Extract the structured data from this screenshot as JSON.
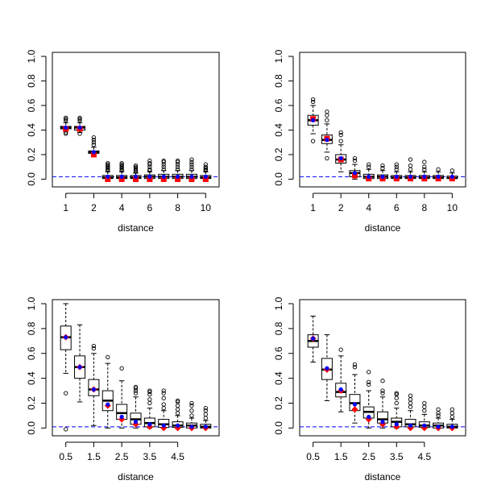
{
  "colors": {
    "median": "#000000",
    "box": "#000000",
    "whisker": "#000000",
    "outlier": "#000000",
    "red_marker": "#ff0000",
    "blue_marker": "#0000ff",
    "reference_line": "#0000ff",
    "background": "#ffffff"
  },
  "chart_data": [
    {
      "panel": "top-left",
      "type": "boxplot",
      "xlabel": "distance",
      "ylabel": "",
      "ylim": [
        -0.03,
        1.0
      ],
      "yticks": [
        "0.0",
        "0.2",
        "0.4",
        "0.6",
        "0.8",
        "1.0"
      ],
      "ytick_values": [
        0,
        0.2,
        0.4,
        0.6,
        0.8,
        1.0
      ],
      "xtick_labels": [
        "1",
        "2",
        "4",
        "6",
        "8",
        "10"
      ],
      "xtick_positions": [
        1,
        3,
        5,
        7,
        9,
        11
      ],
      "reference_line": 0.02,
      "boxes": [
        {
          "q1": 0.41,
          "median": 0.42,
          "q3": 0.43,
          "lo": 0.39,
          "hi": 0.46,
          "outliers": [
            0.48,
            0.49,
            0.5,
            0.37,
            0.38
          ]
        },
        {
          "q1": 0.4,
          "median": 0.42,
          "q3": 0.43,
          "lo": 0.38,
          "hi": 0.46,
          "outliers": [
            0.48,
            0.49,
            0.5,
            0.37
          ]
        },
        {
          "q1": 0.21,
          "median": 0.22,
          "q3": 0.23,
          "lo": 0.19,
          "hi": 0.26,
          "outliers": [
            0.28,
            0.3,
            0.32,
            0.34
          ]
        },
        {
          "q1": 0.005,
          "median": 0.015,
          "q3": 0.03,
          "lo": 0.0,
          "hi": 0.06,
          "outliers": [
            0.07,
            0.08,
            0.09,
            0.1,
            0.11,
            0.12,
            0.13
          ]
        },
        {
          "q1": 0.005,
          "median": 0.015,
          "q3": 0.03,
          "lo": 0.0,
          "hi": 0.06,
          "outliers": [
            0.07,
            0.08,
            0.09,
            0.1,
            0.11,
            0.12,
            0.13
          ]
        },
        {
          "q1": 0.005,
          "median": 0.015,
          "q3": 0.03,
          "lo": 0.0,
          "hi": 0.05,
          "outliers": [
            0.06,
            0.07,
            0.08,
            0.09,
            0.1,
            0.11
          ]
        },
        {
          "q1": 0.005,
          "median": 0.02,
          "q3": 0.035,
          "lo": 0.0,
          "hi": 0.06,
          "outliers": [
            0.07,
            0.08,
            0.1,
            0.12,
            0.13,
            0.15
          ]
        },
        {
          "q1": 0.005,
          "median": 0.02,
          "q3": 0.04,
          "lo": 0.0,
          "hi": 0.07,
          "outliers": [
            0.08,
            0.1,
            0.12,
            0.14,
            0.15
          ]
        },
        {
          "q1": 0.005,
          "median": 0.02,
          "q3": 0.04,
          "lo": 0.0,
          "hi": 0.07,
          "outliers": [
            0.08,
            0.1,
            0.12,
            0.14,
            0.15
          ]
        },
        {
          "q1": 0.005,
          "median": 0.02,
          "q3": 0.04,
          "lo": 0.0,
          "hi": 0.07,
          "outliers": [
            0.08,
            0.1,
            0.12,
            0.14,
            0.16
          ]
        },
        {
          "q1": 0.005,
          "median": 0.015,
          "q3": 0.03,
          "lo": 0.0,
          "hi": 0.06,
          "outliers": [
            0.07,
            0.08,
            0.09,
            0.1,
            0.12
          ]
        }
      ],
      "red_points": [
        0.41,
        0.41,
        0.2,
        0.0,
        0.0,
        0.0,
        0.0,
        0.0,
        0.0,
        0.0,
        0.0
      ],
      "blue_points": [
        0.42,
        0.42,
        0.22,
        0.02,
        0.02,
        0.02,
        0.02,
        0.02,
        0.02,
        0.02,
        0.02
      ],
      "red_shape": "square",
      "blue_shape": "dot"
    },
    {
      "panel": "top-right",
      "type": "boxplot",
      "xlabel": "distance",
      "ylabel": "",
      "ylim": [
        -0.03,
        1.0
      ],
      "yticks": [
        "0.0",
        "0.2",
        "0.4",
        "0.6",
        "0.8",
        "1.0"
      ],
      "ytick_values": [
        0,
        0.2,
        0.4,
        0.6,
        0.8,
        1.0
      ],
      "xtick_labels": [
        "1",
        "2",
        "4",
        "6",
        "8",
        "10"
      ],
      "xtick_positions": [
        1,
        3,
        5,
        7,
        9,
        11
      ],
      "reference_line": 0.02,
      "boxes": [
        {
          "q1": 0.44,
          "median": 0.48,
          "q3": 0.52,
          "lo": 0.37,
          "hi": 0.6,
          "outliers": [
            0.63,
            0.65,
            0.31
          ]
        },
        {
          "q1": 0.29,
          "median": 0.32,
          "q3": 0.36,
          "lo": 0.22,
          "hi": 0.45,
          "outliers": [
            0.48,
            0.52,
            0.55,
            0.17
          ]
        },
        {
          "q1": 0.13,
          "median": 0.16,
          "q3": 0.2,
          "lo": 0.06,
          "hi": 0.28,
          "outliers": [
            0.31,
            0.36,
            0.38
          ]
        },
        {
          "q1": 0.02,
          "median": 0.05,
          "q3": 0.07,
          "lo": 0.0,
          "hi": 0.12,
          "outliers": [
            0.15,
            0.17
          ]
        },
        {
          "q1": 0.005,
          "median": 0.02,
          "q3": 0.04,
          "lo": 0.0,
          "hi": 0.08,
          "outliers": [
            0.1,
            0.12
          ]
        },
        {
          "q1": 0.005,
          "median": 0.02,
          "q3": 0.035,
          "lo": 0.0,
          "hi": 0.07,
          "outliers": [
            0.09,
            0.11
          ]
        },
        {
          "q1": 0.005,
          "median": 0.015,
          "q3": 0.03,
          "lo": 0.0,
          "hi": 0.06,
          "outliers": [
            0.08,
            0.1,
            0.12
          ]
        },
        {
          "q1": 0.005,
          "median": 0.015,
          "q3": 0.03,
          "lo": 0.0,
          "hi": 0.06,
          "outliers": [
            0.08,
            0.11,
            0.16
          ]
        },
        {
          "q1": 0.005,
          "median": 0.015,
          "q3": 0.03,
          "lo": 0.0,
          "hi": 0.06,
          "outliers": [
            0.08,
            0.1,
            0.14
          ]
        },
        {
          "q1": 0.005,
          "median": 0.015,
          "q3": 0.03,
          "lo": 0.0,
          "hi": 0.06,
          "outliers": [
            0.08
          ]
        },
        {
          "q1": 0.005,
          "median": 0.01,
          "q3": 0.025,
          "lo": 0.0,
          "hi": 0.05,
          "outliers": [
            0.07
          ]
        }
      ],
      "red_points": [
        0.49,
        0.33,
        0.16,
        0.03,
        0.005,
        0.005,
        0.005,
        0.005,
        0.005,
        0.005,
        0.005
      ],
      "blue_points": [
        0.48,
        0.32,
        0.17,
        0.05,
        0.02,
        0.02,
        0.02,
        0.02,
        0.02,
        0.02,
        0.02
      ],
      "red_shape": "square",
      "blue_shape": "dot"
    },
    {
      "panel": "bottom-left",
      "type": "boxplot",
      "xlabel": "distance",
      "ylabel": "",
      "ylim": [
        -0.03,
        1.0
      ],
      "yticks": [
        "0.0",
        "0.2",
        "0.4",
        "0.6",
        "0.8",
        "1.0"
      ],
      "ytick_values": [
        0,
        0.2,
        0.4,
        0.6,
        0.8,
        1.0
      ],
      "xtick_labels": [
        "0.5",
        "1.5",
        "2.5",
        "3.5",
        "4.5"
      ],
      "xtick_positions": [
        1,
        3,
        5,
        7,
        9
      ],
      "reference_line": 0.01,
      "boxes": [
        {
          "q1": 0.63,
          "median": 0.73,
          "q3": 0.82,
          "lo": 0.44,
          "hi": 1.0,
          "outliers": [
            0.28,
            -0.01
          ]
        },
        {
          "q1": 0.4,
          "median": 0.49,
          "q3": 0.58,
          "lo": 0.21,
          "hi": 0.83,
          "outliers": []
        },
        {
          "q1": 0.26,
          "median": 0.31,
          "q3": 0.39,
          "lo": 0.02,
          "hi": 0.6,
          "outliers": [
            0.64,
            0.66
          ]
        },
        {
          "q1": 0.14,
          "median": 0.22,
          "q3": 0.3,
          "lo": 0.0,
          "hi": 0.52,
          "outliers": [
            0.57
          ]
        },
        {
          "q1": 0.07,
          "median": 0.12,
          "q3": 0.19,
          "lo": 0.0,
          "hi": 0.38,
          "outliers": [
            0.48
          ]
        },
        {
          "q1": 0.03,
          "median": 0.07,
          "q3": 0.12,
          "lo": 0.0,
          "hi": 0.25,
          "outliers": [
            0.28,
            0.3,
            0.32,
            0.33
          ]
        },
        {
          "q1": 0.01,
          "median": 0.04,
          "q3": 0.08,
          "lo": 0.0,
          "hi": 0.16,
          "outliers": [
            0.2,
            0.23,
            0.27,
            0.29,
            0.3
          ]
        },
        {
          "q1": 0.005,
          "median": 0.03,
          "q3": 0.07,
          "lo": 0.0,
          "hi": 0.14,
          "outliers": [
            0.16,
            0.19,
            0.24,
            0.28,
            0.3
          ]
        },
        {
          "q1": 0.005,
          "median": 0.02,
          "q3": 0.05,
          "lo": 0.0,
          "hi": 0.1,
          "outliers": [
            0.12,
            0.15,
            0.18,
            0.21,
            0.22
          ]
        },
        {
          "q1": 0.0,
          "median": 0.02,
          "q3": 0.04,
          "lo": 0.0,
          "hi": 0.08,
          "outliers": [
            0.1,
            0.14,
            0.18,
            0.2
          ]
        },
        {
          "q1": 0.0,
          "median": 0.01,
          "q3": 0.03,
          "lo": 0.0,
          "hi": 0.06,
          "outliers": [
            0.08,
            0.11,
            0.14,
            0.16
          ]
        }
      ],
      "red_points": [
        0.73,
        0.49,
        0.31,
        0.18,
        0.07,
        0.03,
        0.01,
        0.0,
        0.0,
        0.0,
        0.0
      ],
      "blue_points": [
        0.73,
        0.49,
        0.31,
        0.19,
        0.09,
        0.05,
        0.03,
        0.02,
        0.02,
        0.01,
        0.01
      ],
      "red_shape": "diamond",
      "blue_shape": "dot"
    },
    {
      "panel": "bottom-right",
      "type": "boxplot",
      "xlabel": "distance",
      "ylabel": "",
      "ylim": [
        -0.03,
        1.0
      ],
      "yticks": [
        "0.0",
        "0.2",
        "0.4",
        "0.6",
        "0.8",
        "1.0"
      ],
      "ytick_values": [
        0,
        0.2,
        0.4,
        0.6,
        0.8,
        1.0
      ],
      "xtick_labels": [
        "0.5",
        "1.5",
        "2.5",
        "3.5",
        "4.5"
      ],
      "xtick_positions": [
        1,
        3,
        5,
        7,
        9
      ],
      "reference_line": 0.01,
      "boxes": [
        {
          "q1": 0.65,
          "median": 0.7,
          "q3": 0.75,
          "lo": 0.53,
          "hi": 0.9,
          "outliers": []
        },
        {
          "q1": 0.39,
          "median": 0.47,
          "q3": 0.56,
          "lo": 0.22,
          "hi": 0.75,
          "outliers": []
        },
        {
          "q1": 0.25,
          "median": 0.29,
          "q3": 0.36,
          "lo": 0.13,
          "hi": 0.58,
          "outliers": [
            0.63
          ]
        },
        {
          "q1": 0.14,
          "median": 0.2,
          "q3": 0.27,
          "lo": 0.04,
          "hi": 0.43,
          "outliers": [
            0.49,
            0.51
          ]
        },
        {
          "q1": 0.08,
          "median": 0.13,
          "q3": 0.17,
          "lo": 0.0,
          "hi": 0.3,
          "outliers": [
            0.35,
            0.37,
            0.45
          ]
        },
        {
          "q1": 0.04,
          "median": 0.07,
          "q3": 0.13,
          "lo": 0.0,
          "hi": 0.25,
          "outliers": [
            0.28,
            0.3,
            0.38
          ]
        },
        {
          "q1": 0.01,
          "median": 0.05,
          "q3": 0.08,
          "lo": 0.0,
          "hi": 0.16,
          "outliers": [
            0.2,
            0.24,
            0.27,
            0.28
          ]
        },
        {
          "q1": 0.01,
          "median": 0.03,
          "q3": 0.07,
          "lo": 0.0,
          "hi": 0.14,
          "outliers": [
            0.17,
            0.2,
            0.23,
            0.26
          ]
        },
        {
          "q1": 0.005,
          "median": 0.02,
          "q3": 0.05,
          "lo": 0.0,
          "hi": 0.11,
          "outliers": [
            0.14,
            0.17,
            0.2
          ]
        },
        {
          "q1": 0.0,
          "median": 0.02,
          "q3": 0.04,
          "lo": 0.0,
          "hi": 0.08,
          "outliers": [
            0.1,
            0.12,
            0.15
          ]
        },
        {
          "q1": 0.0,
          "median": 0.01,
          "q3": 0.03,
          "lo": 0.0,
          "hi": 0.07,
          "outliers": [
            0.09,
            0.12,
            0.15
          ]
        }
      ],
      "red_points": [
        0.72,
        0.47,
        0.3,
        0.15,
        0.07,
        0.03,
        0.01,
        0.0,
        0.0,
        0.0,
        0.0
      ],
      "blue_points": [
        0.72,
        0.48,
        0.31,
        0.19,
        0.09,
        0.05,
        0.03,
        0.02,
        0.02,
        0.01,
        0.01
      ],
      "red_shape": "diamond",
      "blue_shape": "dot"
    }
  ]
}
